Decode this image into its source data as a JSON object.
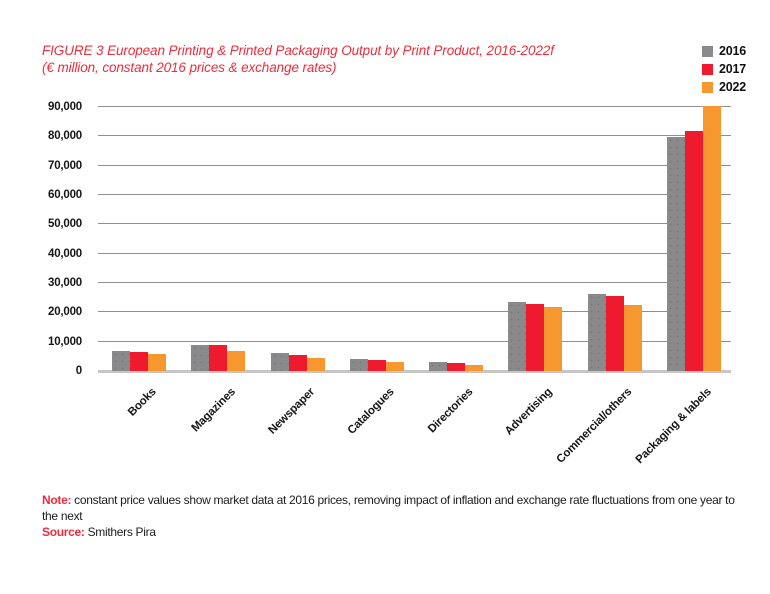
{
  "title": {
    "line1": "FIGURE 3 European Printing & Printed Packaging Output by Print Product, 2016-2022f",
    "line2": "(€ million, constant 2016 prices & exchange rates)",
    "color": "#ee2c3c"
  },
  "chart_data": {
    "type": "bar",
    "title": "FIGURE 3 European Printing & Printed Packaging Output by Print Product, 2016-2022f",
    "subtitle": "(€ million, constant 2016 prices & exchange rates)",
    "categories": [
      "Books",
      "Magazines",
      "Newspaper",
      "Catalogues",
      "Directories",
      "Advertising",
      "Commercial/others",
      "Packaging & labels"
    ],
    "series": [
      {
        "name": "2016",
        "color": "#8a8a8c",
        "values": [
          6900,
          9000,
          6200,
          4000,
          3000,
          23500,
          26300,
          79800
        ]
      },
      {
        "name": "2017",
        "color": "#ed1b2d",
        "values": [
          6500,
          8700,
          5600,
          3700,
          2700,
          22900,
          25700,
          81800
        ]
      },
      {
        "name": "2022",
        "color": "#f6982f",
        "values": [
          5700,
          6900,
          4500,
          3100,
          2000,
          21800,
          22400,
          90500
        ]
      }
    ],
    "yticks": [
      "0",
      "10,000",
      "20,000",
      "30,000",
      "40,000",
      "50,000",
      "60,000",
      "70,000",
      "80,000",
      "90,000"
    ],
    "ylim": [
      0,
      90000
    ],
    "grid": true,
    "legend_position": "top-right",
    "xlabel": "",
    "ylabel": ""
  },
  "note": {
    "label": "Note:",
    "text": "constant price values show market data at 2016 prices, removing impact of inflation and exchange rate fluctuations from one year to the next",
    "source_label": "Source:",
    "source_text": "Smithers Pira"
  },
  "colors": {
    "gridline": "#8f9090",
    "baseline": "#c6c6c6",
    "background": "#ffffff"
  }
}
